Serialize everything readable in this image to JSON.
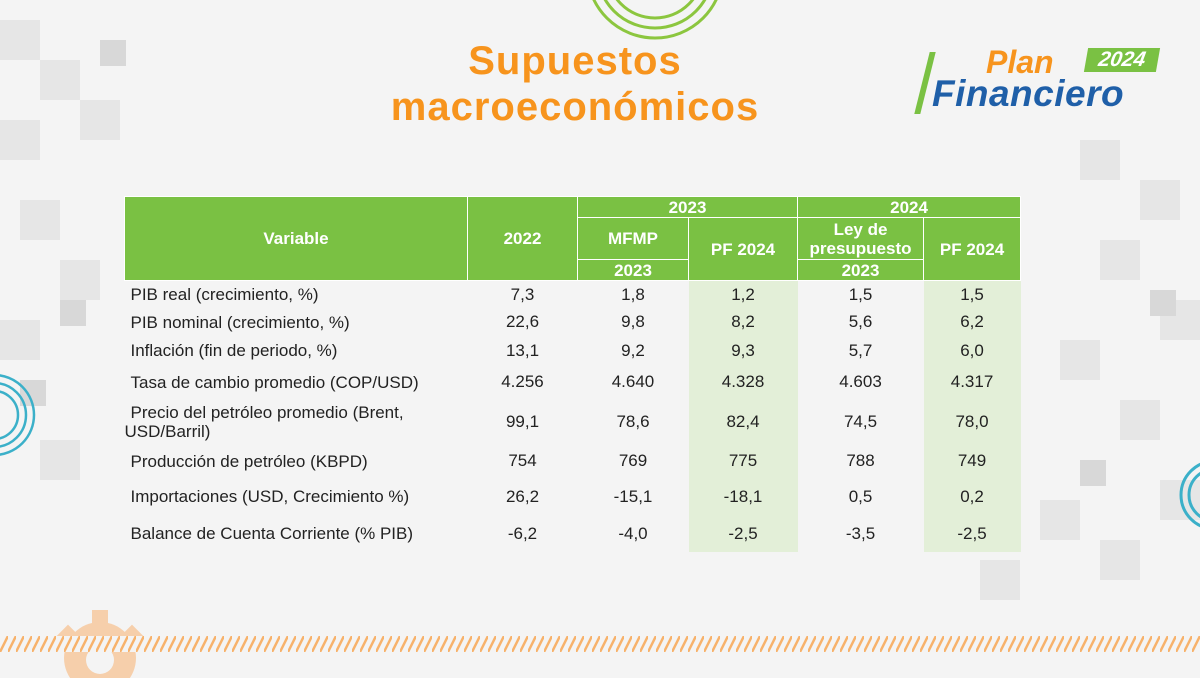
{
  "slide": {
    "title_line1": "Supuestos",
    "title_line2": "macroeconómicos"
  },
  "logo": {
    "word1": "Plan",
    "year": "2024",
    "word2": "Financiero"
  },
  "colors": {
    "title_orange": "#f7941d",
    "header_green": "#7ac143",
    "highlight_green": "#e3efd8",
    "logo_blue": "#1f5fa8"
  },
  "table": {
    "header": {
      "variable": "Variable",
      "col_2022": "2022",
      "group_2023": "2023",
      "group_2024": "2024",
      "mfmp": "MFMP",
      "mfmp_year": "2023",
      "pf2024_a": "PF 2024",
      "ley_line1": "Ley de",
      "ley_line2": "presupuesto",
      "ley_year": "2023",
      "pf2024_b": "PF 2024"
    },
    "rows": [
      {
        "variable": "PIB real (crecimiento, %)",
        "v2022": "7,3",
        "mfmp": "1,8",
        "pf2023": "1,2",
        "ley": "1,5",
        "pf2024": "1,5"
      },
      {
        "variable": "PIB nominal (crecimiento, %)",
        "v2022": "22,6",
        "mfmp": "9,8",
        "pf2023": "8,2",
        "ley": "5,6",
        "pf2024": "6,2"
      },
      {
        "variable": "Inflación (fin de periodo, %)",
        "v2022": "13,1",
        "mfmp": "9,2",
        "pf2023": "9,3",
        "ley": "5,7",
        "pf2024": "6,0"
      },
      {
        "variable": "Tasa de cambio promedio (COP/USD)",
        "v2022": "4.256",
        "mfmp": "4.640",
        "pf2023": "4.328",
        "ley": "4.603",
        "pf2024": "4.317"
      },
      {
        "variable_line1": "Precio del petróleo promedio (Brent,",
        "variable_line2": "USD/Barril)",
        "v2022": "99,1",
        "mfmp": "78,6",
        "pf2023": "82,4",
        "ley": "74,5",
        "pf2024": "78,0"
      },
      {
        "variable": "Producción de petróleo (KBPD)",
        "v2022": "754",
        "mfmp": "769",
        "pf2023": "775",
        "ley": "788",
        "pf2024": "749"
      },
      {
        "variable": "Importaciones (USD, Crecimiento %)",
        "v2022": "26,2",
        "mfmp": "-15,1",
        "pf2023": "-18,1",
        "ley": "0,5",
        "pf2024": "0,2"
      },
      {
        "variable": "Balance de Cuenta Corriente (% PIB)",
        "v2022": "-6,2",
        "mfmp": "-4,0",
        "pf2023": "-2,5",
        "ley": "-3,5",
        "pf2024": "-2,5"
      }
    ]
  }
}
